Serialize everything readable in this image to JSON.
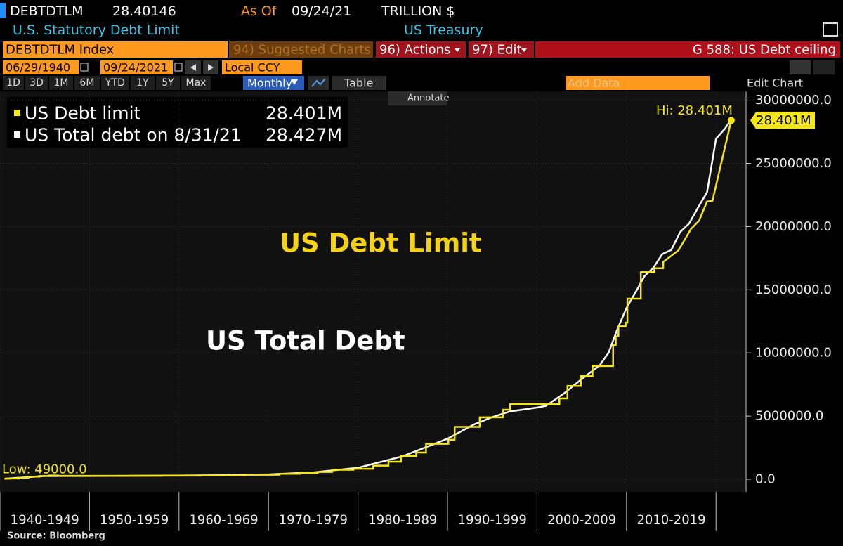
{
  "header": {
    "ticker": "DEBTDTLM",
    "last": "28.40146",
    "as_of_label": "As Of",
    "as_of": "09/24/21",
    "units": "TRILLION $",
    "name": "U.S. Statutory Debt Limit",
    "source_name": "US Treasury"
  },
  "toolbar": {
    "security": "DEBTDTLM Index",
    "suggested": "94) Suggested Charts",
    "actions": "96) Actions",
    "edit": "97) Edit",
    "page": "G 588: US Debt ceiling",
    "start_date": "06/29/1940",
    "end_date": "09/24/2021",
    "currency": "Local CCY",
    "periods": [
      "1D",
      "3D",
      "1M",
      "6M",
      "YTD",
      "1Y",
      "5Y",
      "Max"
    ],
    "frequency": "Monthly",
    "table": "Table",
    "add_data": "Add Data",
    "edit_chart": "Edit Chart",
    "annotate": "Annotate"
  },
  "chart_data": {
    "type": "line",
    "annotations": [
      "US Debt Limit",
      "US Total Debt"
    ],
    "high_label": "Hi: 28.401M",
    "low_label": "Low: 49000.0",
    "last_label": "28.401M",
    "xlim": [
      1940,
      2023.2
    ],
    "xticks": [
      {
        "value": 1940,
        "label": "1940-1949"
      },
      {
        "value": 1950,
        "label": "1950-1959"
      },
      {
        "value": 1960,
        "label": "1960-1969"
      },
      {
        "value": 1970,
        "label": "1970-1979"
      },
      {
        "value": 1980,
        "label": "1980-1989"
      },
      {
        "value": 1990,
        "label": "1990-1999"
      },
      {
        "value": 2000,
        "label": "2000-2009"
      },
      {
        "value": 2010,
        "label": "2010-2019"
      },
      {
        "value": 2020,
        "label": null
      }
    ],
    "ylim": [
      -1000000,
      30700000
    ],
    "yticks": [
      {
        "value": 0,
        "label": "0.0"
      },
      {
        "value": 5000000,
        "label": "5000000.0"
      },
      {
        "value": 10000000,
        "label": "10000000.0"
      },
      {
        "value": 15000000,
        "label": "15000000.0"
      },
      {
        "value": 20000000,
        "label": "20000000.0"
      },
      {
        "value": 25000000,
        "label": "25000000.0"
      },
      {
        "value": 30000000,
        "label": "30000000.0"
      }
    ],
    "grid": true,
    "series": [
      {
        "name": "US Debt limit",
        "color": "#f5e61a",
        "legend_value": "28.401M",
        "x": [
          1940.5,
          1941.2,
          1941.2,
          1942.1,
          1942.1,
          1943.2,
          1943.2,
          1944.4,
          1944.4,
          1945.5,
          1945.5,
          1946.5,
          1946.5,
          1954.6,
          1954.6,
          1958.1,
          1958.1,
          1962.5,
          1962.5,
          1967.5,
          1967.5,
          1971.2,
          1971.2,
          1973.5,
          1973.5,
          1975.5,
          1975.5,
          1977.1,
          1977.1,
          1979.5,
          1979.5,
          1981.7,
          1981.7,
          1983.4,
          1983.4,
          1984.8,
          1984.8,
          1986.5,
          1986.5,
          1987.6,
          1987.6,
          1990.1,
          1990.1,
          1990.8,
          1990.8,
          1993.6,
          1993.6,
          1996.2,
          1996.2,
          1997.0,
          1997.0,
          2002.5,
          2002.5,
          2003.4,
          2003.4,
          2004.9,
          2004.9,
          2006.2,
          2006.2,
          2008.5,
          2008.5,
          2008.8,
          2008.8,
          2009.1,
          2009.1,
          2009.9,
          2009.9,
          2010.1,
          2010.1,
          2011.6,
          2011.6,
          2013.1,
          2013.1,
          2014.1,
          2014.1,
          2015.8,
          2017.2,
          2018.1,
          2019.0,
          2019.6,
          2021.7
        ],
        "values": [
          49000,
          49000,
          65000,
          65000,
          125000,
          125000,
          210000,
          210000,
          260000,
          260000,
          300000,
          300000,
          275000,
          275000,
          281000,
          281000,
          288000,
          288000,
          300000,
          300000,
          358000,
          358000,
          430000,
          430000,
          495000,
          495000,
          577000,
          577000,
          752000,
          752000,
          830000,
          830000,
          1079800,
          1079800,
          1389000,
          1389000,
          1823800,
          1823800,
          2111000,
          2111000,
          2800000,
          2800000,
          3122700,
          3122700,
          4145000,
          4145000,
          4900000,
          4900000,
          5500000,
          5500000,
          5950000,
          5950000,
          6400000,
          6400000,
          7384000,
          7384000,
          8184000,
          8184000,
          8965000,
          8965000,
          10615000,
          10615000,
          11315000,
          11315000,
          12104000,
          12104000,
          12394000,
          12394000,
          14294000,
          14294000,
          16394000,
          16394000,
          16699000,
          16699000,
          17200000,
          18113000,
          19809000,
          20456000,
          21988000,
          22030000,
          28401000
        ]
      },
      {
        "name": "US Total debt on 8/31/21",
        "color": "#ffffff",
        "legend_value": "28.427M",
        "x": [
          1940.5,
          1945,
          1950,
          1955,
          1960,
          1965,
          1970,
          1975,
          1980,
          1985,
          1990,
          1993,
          1995,
          1997,
          2000,
          2001,
          2003,
          2005,
          2007,
          2008,
          2009,
          2010,
          2011,
          2012,
          2013,
          2014,
          2015,
          2016,
          2017,
          2018,
          2019,
          2020,
          2021.0,
          2021.66
        ],
        "values": [
          43000,
          260000,
          257000,
          274000,
          290000,
          322000,
          381000,
          542000,
          908000,
          1817000,
          3206000,
          4351000,
          4921000,
          5369000,
          5674000,
          5807000,
          6783000,
          7933000,
          9008000,
          10025000,
          11910000,
          13562000,
          14790000,
          16066000,
          16738000,
          17824000,
          18151000,
          19573000,
          20245000,
          21516000,
          22719000,
          26945000,
          27748000,
          28427000
        ]
      }
    ]
  },
  "footer": {
    "source": "Source: Bloomberg"
  }
}
